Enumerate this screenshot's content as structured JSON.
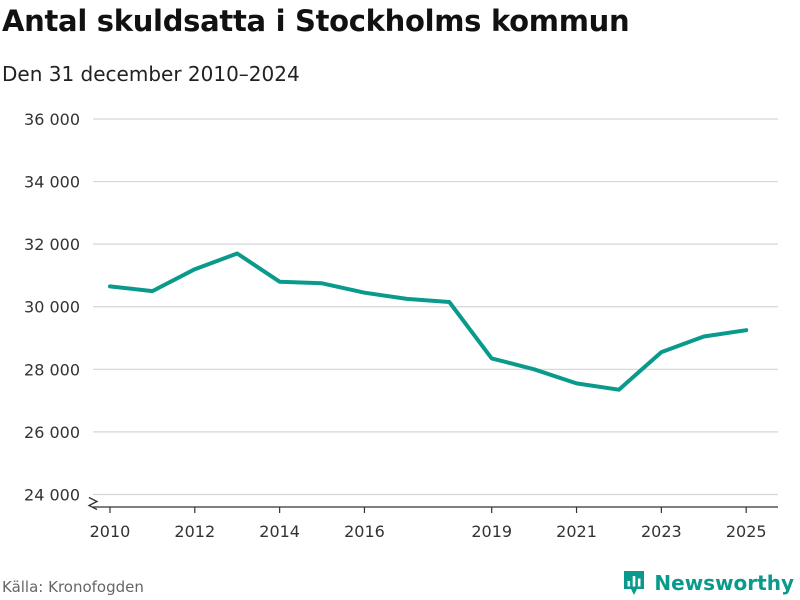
{
  "header": {
    "title": "Antal skuldsatta i Stockholms kommun",
    "subtitle": "Den 31 december 2010–2024"
  },
  "footer": {
    "source": "Källa: Kronofogden",
    "brand": "Newsworthy",
    "brand_icon": "bar-chart-logo-icon"
  },
  "colors": {
    "line": "#0a9a8c",
    "grid": "#d6d6d6",
    "axis": "#333333",
    "tick_text": "#333333",
    "brand": "#0a9a8c"
  },
  "chart_data": {
    "type": "line",
    "title": "Antal skuldsatta i Stockholms kommun",
    "subtitle": "Den 31 december 2010–2024",
    "xlabel": "",
    "ylabel": "",
    "x": [
      2010,
      2011,
      2012,
      2013,
      2014,
      2015,
      2016,
      2017,
      2018,
      2019,
      2020,
      2021,
      2022,
      2023,
      2024,
      2025
    ],
    "series": [
      {
        "name": "Antal skuldsatta",
        "values": [
          30650,
          30500,
          31200,
          31700,
          30800,
          30750,
          30450,
          30250,
          30150,
          28350,
          28000,
          27550,
          27350,
          28550,
          29050,
          29250
        ]
      }
    ],
    "xlim": [
      2009.6,
      2025.75
    ],
    "ylim": [
      23600,
      36000
    ],
    "x_ticks": [
      2010,
      2012,
      2014,
      2016,
      2019,
      2021,
      2023,
      2025
    ],
    "x_tick_labels": [
      "2010",
      "2012",
      "2014",
      "2016",
      "2019",
      "2021",
      "2023",
      "2025"
    ],
    "y_ticks": [
      24000,
      26000,
      28000,
      30000,
      32000,
      34000,
      36000
    ],
    "y_tick_labels": [
      "24 000",
      "26 000",
      "28 000",
      "30 000",
      "32 000",
      "34 000",
      "36 000"
    ],
    "grid": true,
    "axis_break": true,
    "legend": "none"
  }
}
